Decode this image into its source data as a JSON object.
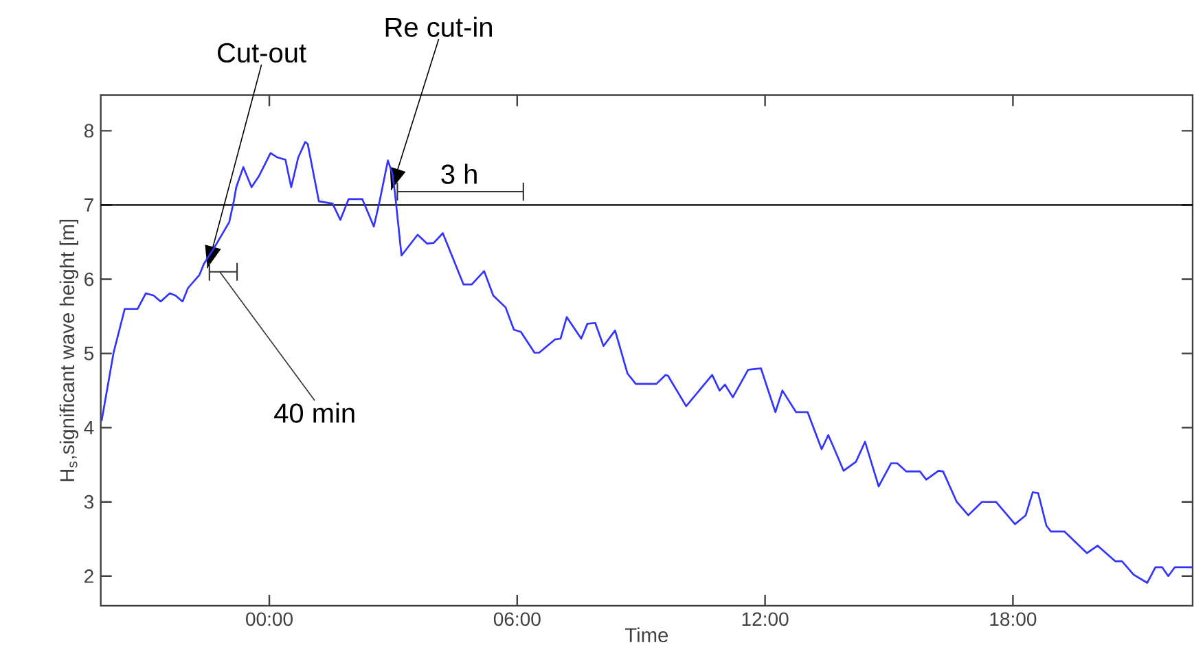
{
  "chart_data": {
    "type": "line",
    "xlabel": "Time",
    "ylabel": "H$_{s}$,significant wave height [m]",
    "xlim": [
      -4.08,
      22.35
    ],
    "ylim": [
      1.6,
      8.48
    ],
    "xticks": [
      {
        "value": 0,
        "label": "00:00"
      },
      {
        "value": 6,
        "label": "06:00"
      },
      {
        "value": 12,
        "label": "12:00"
      },
      {
        "value": 18,
        "label": "18:00"
      }
    ],
    "yticks": [
      2,
      3,
      4,
      5,
      6,
      7,
      8
    ],
    "grid": false,
    "ref_lines": [
      {
        "axis": "y",
        "value": 7,
        "color": "#000000"
      }
    ],
    "annotations": [
      {
        "text": "Cut-out",
        "x": -1.5,
        "y": 6.15
      },
      {
        "text": "Re cut-in",
        "x": 2.95,
        "y": 7.2
      },
      {
        "text": "40 min",
        "x": -1.2,
        "y": 6.1
      },
      {
        "text": "3 h",
        "x": 4.6,
        "y": 7.18
      }
    ],
    "series": [
      {
        "color": "#3333ff",
        "x": [
          -4.06,
          -3.77,
          -3.5,
          -3.19,
          -2.99,
          -2.8,
          -2.63,
          -2.41,
          -2.27,
          -2.1,
          -1.97,
          -1.69,
          -1.58,
          -1.36,
          -0.97,
          -0.86,
          -0.8,
          -0.63,
          -0.43,
          -0.25,
          0.03,
          0.2,
          0.39,
          0.53,
          0.7,
          0.87,
          0.93,
          1.2,
          1.53,
          1.72,
          1.92,
          2.25,
          2.53,
          2.67,
          2.87,
          2.98,
          3.04,
          3.2,
          3.59,
          3.82,
          3.98,
          4.2,
          4.7,
          4.9,
          5.2,
          5.42,
          5.72,
          5.92,
          6.09,
          6.42,
          6.53,
          6.92,
          7.05,
          7.2,
          7.55,
          7.7,
          7.89,
          8.09,
          8.37,
          8.67,
          8.87,
          9.37,
          9.59,
          9.65,
          10.09,
          10.72,
          10.9,
          11.03,
          11.22,
          11.59,
          11.9,
          12.03,
          12.25,
          12.42,
          12.75,
          13.03,
          13.37,
          13.53,
          13.68,
          13.9,
          14.2,
          14.42,
          14.75,
          15.05,
          15.2,
          15.42,
          15.75,
          15.9,
          16.2,
          16.31,
          16.64,
          16.92,
          17.25,
          17.59,
          18.05,
          18.31,
          18.48,
          18.61,
          18.81,
          18.92,
          19.25,
          19.79,
          20.05,
          20.48,
          20.64,
          20.92,
          21.25,
          21.45,
          21.61,
          21.76,
          21.92,
          22.35
        ],
        "values": [
          4.09,
          5.01,
          5.6,
          5.6,
          5.81,
          5.78,
          5.7,
          5.81,
          5.78,
          5.7,
          5.88,
          6.06,
          6.21,
          6.4,
          6.77,
          7.05,
          7.24,
          7.51,
          7.24,
          7.39,
          7.7,
          7.64,
          7.61,
          7.24,
          7.64,
          7.85,
          7.82,
          7.05,
          7.02,
          6.8,
          7.08,
          7.08,
          6.71,
          7.05,
          7.6,
          7.42,
          7.17,
          6.32,
          6.6,
          6.48,
          6.49,
          6.62,
          5.93,
          5.93,
          6.11,
          5.78,
          5.62,
          5.32,
          5.29,
          5.01,
          5.01,
          5.19,
          5.2,
          5.49,
          5.2,
          5.4,
          5.41,
          5.1,
          5.31,
          4.73,
          4.59,
          4.59,
          4.71,
          4.7,
          4.29,
          4.71,
          4.5,
          4.58,
          4.41,
          4.78,
          4.8,
          4.58,
          4.21,
          4.5,
          4.21,
          4.21,
          3.71,
          3.9,
          3.71,
          3.42,
          3.54,
          3.81,
          3.21,
          3.52,
          3.52,
          3.41,
          3.41,
          3.3,
          3.42,
          3.41,
          3.0,
          2.82,
          3.0,
          3.0,
          2.7,
          2.82,
          3.13,
          3.12,
          2.68,
          2.6,
          2.6,
          2.31,
          2.41,
          2.2,
          2.2,
          2.02,
          1.91,
          2.12,
          2.12,
          2.0,
          2.12,
          2.12
        ]
      },
      {
        "type": "line",
        "color": "#333333",
        "x": [
          -1.45,
          -0.78
        ],
        "values": [
          6.1,
          6.1
        ],
        "errors": [
          0.12,
          0.12
        ]
      },
      {
        "type": "line",
        "color": "#333333",
        "x": [
          3.1,
          6.15
        ],
        "values": [
          7.18,
          7.18
        ],
        "errors": [
          0.12,
          0.12
        ]
      }
    ]
  }
}
